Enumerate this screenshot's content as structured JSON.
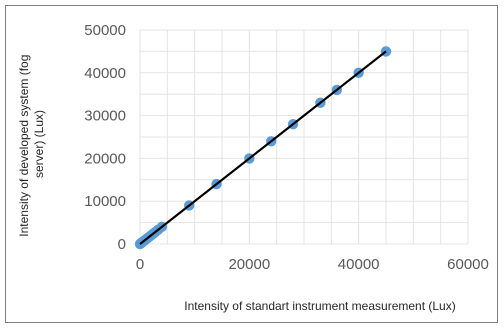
{
  "chart_data": {
    "type": "scatter",
    "title": "",
    "xlabel": "Intensity of standart instrument measurement (Lux)",
    "ylabel_lines": [
      "Intensity of developed system (fog",
      "server) (Lux)"
    ],
    "xlim": [
      0,
      60000
    ],
    "ylim": [
      0,
      50000
    ],
    "x_ticks": [
      0,
      20000,
      40000,
      60000
    ],
    "x_tick_labels": [
      "0",
      "20000",
      "40000",
      "60000"
    ],
    "y_ticks": [
      0,
      10000,
      20000,
      30000,
      40000,
      50000
    ],
    "y_tick_labels": [
      "0",
      "10000",
      "20000",
      "30000",
      "40000",
      "50000"
    ],
    "grid": true,
    "legend": "none",
    "point_color": "#5b9bd5",
    "line_color": "#000000",
    "points": [
      {
        "x": 0,
        "y": 0
      },
      {
        "x": 100,
        "y": 100
      },
      {
        "x": 200,
        "y": 200
      },
      {
        "x": 300,
        "y": 300
      },
      {
        "x": 500,
        "y": 500
      },
      {
        "x": 700,
        "y": 700
      },
      {
        "x": 1000,
        "y": 1000
      },
      {
        "x": 1300,
        "y": 1300
      },
      {
        "x": 1600,
        "y": 1600
      },
      {
        "x": 2000,
        "y": 2000
      },
      {
        "x": 2400,
        "y": 2400
      },
      {
        "x": 2800,
        "y": 2800
      },
      {
        "x": 3300,
        "y": 3300
      },
      {
        "x": 4000,
        "y": 4000
      },
      {
        "x": 9000,
        "y": 9000
      },
      {
        "x": 14000,
        "y": 14000
      },
      {
        "x": 20000,
        "y": 20000
      },
      {
        "x": 24000,
        "y": 24000
      },
      {
        "x": 28000,
        "y": 28000
      },
      {
        "x": 33000,
        "y": 33000
      },
      {
        "x": 36000,
        "y": 36000
      },
      {
        "x": 40000,
        "y": 40000
      },
      {
        "x": 45000,
        "y": 45000
      }
    ],
    "trendline": {
      "from": [
        0,
        0
      ],
      "to": [
        45000,
        45000
      ]
    }
  }
}
